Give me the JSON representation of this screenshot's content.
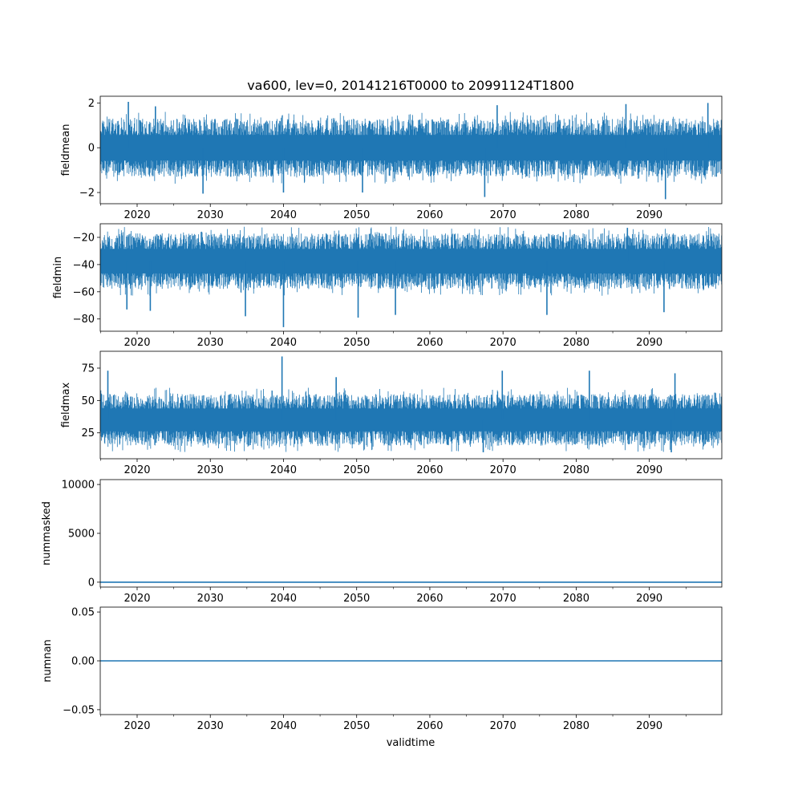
{
  "figure": {
    "title": "va600, lev=0, 20141216T0000 to 20991124T1800",
    "xlabel": "validtime"
  },
  "colors": {
    "series": "#1f77b4",
    "axes": "#000000",
    "background": "#ffffff"
  },
  "chart_data": [
    {
      "type": "line",
      "ylabel": "fieldmean",
      "xlim": [
        2014.96,
        2099.9
      ],
      "ylim": [
        -2.5,
        2.3
      ],
      "yticks": [
        -2,
        0,
        2
      ],
      "ytick_labels": [
        "−2",
        "0",
        "2"
      ],
      "xticks": [
        2020,
        2030,
        2040,
        2050,
        2060,
        2070,
        2080,
        2090
      ],
      "xtick_labels": [
        "2020",
        "2030",
        "2040",
        "2050",
        "2060",
        "2070",
        "2080",
        "2090"
      ],
      "series": [
        {
          "typical_range": [
            -1.3,
            1.3
          ],
          "extremes": [
            {
              "x": 2018.8,
              "y": 2.05
            },
            {
              "x": 2022.5,
              "y": 1.85
            },
            {
              "x": 2029.0,
              "y": -2.05
            },
            {
              "x": 2040.0,
              "y": -2.0
            },
            {
              "x": 2050.8,
              "y": -2.0
            },
            {
              "x": 2067.5,
              "y": -2.2
            },
            {
              "x": 2069.2,
              "y": 1.9
            },
            {
              "x": 2086.8,
              "y": 1.95
            },
            {
              "x": 2092.2,
              "y": -2.3
            },
            {
              "x": 2098.0,
              "y": 2.0
            }
          ]
        }
      ]
    },
    {
      "type": "line",
      "ylabel": "fieldmin",
      "xlim": [
        2014.96,
        2099.9
      ],
      "ylim": [
        -89,
        -10
      ],
      "yticks": [
        -80,
        -60,
        -40,
        -20
      ],
      "ytick_labels": [
        "−80",
        "−60",
        "−40",
        "−20"
      ],
      "xticks": [
        2020,
        2030,
        2040,
        2050,
        2060,
        2070,
        2080,
        2090
      ],
      "xtick_labels": [
        "2020",
        "2030",
        "2040",
        "2050",
        "2060",
        "2070",
        "2080",
        "2090"
      ],
      "series": [
        {
          "typical_range": [
            -58,
            -17
          ],
          "extremes": [
            {
              "x": 2040.0,
              "y": -86
            },
            {
              "x": 2034.8,
              "y": -78
            },
            {
              "x": 2050.2,
              "y": -79
            },
            {
              "x": 2055.3,
              "y": -77
            },
            {
              "x": 2018.6,
              "y": -73
            },
            {
              "x": 2021.8,
              "y": -74
            },
            {
              "x": 2076.0,
              "y": -77
            },
            {
              "x": 2092.0,
              "y": -75
            },
            {
              "x": 2087.0,
              "y": -13
            }
          ]
        }
      ]
    },
    {
      "type": "line",
      "ylabel": "fieldmax",
      "xlim": [
        2014.96,
        2099.9
      ],
      "ylim": [
        5,
        88
      ],
      "yticks": [
        25,
        50,
        75
      ],
      "ytick_labels": [
        "25",
        "50",
        "75"
      ],
      "xticks": [
        2020,
        2030,
        2040,
        2050,
        2060,
        2070,
        2080,
        2090
      ],
      "xtick_labels": [
        "2020",
        "2030",
        "2040",
        "2050",
        "2060",
        "2070",
        "2080",
        "2090"
      ],
      "series": [
        {
          "typical_range": [
            15,
            55
          ],
          "extremes": [
            {
              "x": 2039.8,
              "y": 84
            },
            {
              "x": 2016.0,
              "y": 73
            },
            {
              "x": 2069.9,
              "y": 73
            },
            {
              "x": 2081.8,
              "y": 73
            },
            {
              "x": 2093.5,
              "y": 71
            },
            {
              "x": 2047.2,
              "y": 68
            },
            {
              "x": 2067.3,
              "y": 10
            },
            {
              "x": 2093.0,
              "y": 10
            }
          ]
        }
      ]
    },
    {
      "type": "line",
      "ylabel": "nummasked",
      "xlim": [
        2014.96,
        2099.9
      ],
      "ylim": [
        -500,
        10500
      ],
      "yticks": [
        0,
        5000,
        10000
      ],
      "ytick_labels": [
        "0",
        "5000",
        "10000"
      ],
      "xticks": [
        2020,
        2030,
        2040,
        2050,
        2060,
        2070,
        2080,
        2090
      ],
      "xtick_labels": [
        "2020",
        "2030",
        "2040",
        "2050",
        "2060",
        "2070",
        "2080",
        "2090"
      ],
      "series": [
        {
          "constant": 0
        }
      ]
    },
    {
      "type": "line",
      "ylabel": "numnan",
      "xlim": [
        2014.96,
        2099.9
      ],
      "ylim": [
        -0.055,
        0.055
      ],
      "yticks": [
        -0.05,
        0.0,
        0.05
      ],
      "ytick_labels": [
        "−0.05",
        "0.00",
        "0.05"
      ],
      "xticks": [
        2020,
        2030,
        2040,
        2050,
        2060,
        2070,
        2080,
        2090
      ],
      "xtick_labels": [
        "2020",
        "2030",
        "2040",
        "2050",
        "2060",
        "2070",
        "2080",
        "2090"
      ],
      "series": [
        {
          "constant": 0
        }
      ]
    }
  ]
}
